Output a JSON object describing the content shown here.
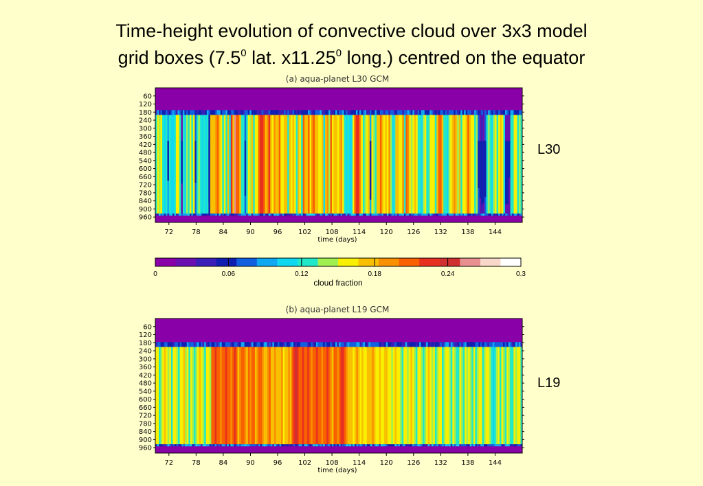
{
  "title": {
    "line1": "Time-height evolution of convective cloud over 3x3 model",
    "line2_a": "grid boxes (7.5",
    "line2_sup1": "0",
    "line2_b": " lat. x11.25",
    "line2_sup2": "0",
    "line2_c": " long.) centred on the equator"
  },
  "chart_data": [
    {
      "type": "heatmap",
      "title": "(a) aqua-planet L30 GCM",
      "side_label": "L30",
      "xlabel": "time (days)",
      "ylabel": "",
      "xlim": [
        69,
        150
      ],
      "ylim": [
        1000,
        0
      ],
      "xticks": [
        72,
        78,
        84,
        90,
        96,
        102,
        108,
        114,
        120,
        126,
        132,
        138,
        144
      ],
      "yticks": [
        60,
        120,
        180,
        240,
        300,
        360,
        420,
        480,
        540,
        600,
        660,
        720,
        780,
        840,
        900,
        960
      ],
      "cloud_layer_hPa": [
        165,
        935
      ],
      "columns": [
        0.13,
        0.15,
        0.14,
        0.16,
        0.13,
        0.11,
        0.12,
        0.09,
        0.12,
        0.11,
        0.1,
        0.13,
        0.16,
        0.15,
        0.13,
        0.03,
        0.13,
        0.11,
        0.14,
        0.12,
        0.16,
        0.12,
        0.15,
        0.07,
        0.13,
        0.14,
        0.12,
        0.1,
        0.13,
        0.11,
        0.13,
        0.05,
        0.17,
        0.18,
        0.17,
        0.19,
        0.2,
        0.18,
        0.15,
        0.12,
        0.16,
        0.13,
        0.18,
        0.11,
        0.22,
        0.18,
        0.26,
        0.2,
        0.21,
        0.17,
        0.13,
        0.12,
        0.08,
        0.12,
        0.16,
        0.14,
        0.17,
        0.12,
        0.16,
        0.15,
        0.2,
        0.22,
        0.23,
        0.2,
        0.17,
        0.19,
        0.22,
        0.18,
        0.16,
        0.19,
        0.18,
        0.17,
        0.2,
        0.15,
        0.16,
        0.17,
        0.18,
        0.12,
        0.17,
        0.16,
        0.18,
        0.16,
        0.12,
        0.17,
        0.16,
        0.12,
        0.21,
        0.18,
        0.17,
        0.2,
        0.16,
        0.19,
        0.2,
        0.17,
        0.18,
        0.16,
        0.15,
        0.17,
        0.11,
        0.17,
        0.19,
        0.14,
        0.2,
        0.15,
        0.18,
        0.18,
        0.16,
        0.17,
        0.19,
        0.16,
        0.13,
        0.1,
        0.12,
        0.1,
        0.1,
        0.15,
        0.21,
        0.23,
        0.22,
        0.19,
        0.16,
        0.13,
        0.14,
        0.16,
        0.17,
        0.09,
        0.15,
        0.14,
        0.13,
        0.17,
        0.18,
        0.2,
        0.17,
        0.15,
        0.17,
        0.16,
        0.19,
        0.14,
        0.1,
        0.12,
        0.18,
        0.17,
        0.16,
        0.16,
        0.19,
        0.13,
        0.2,
        0.19,
        0.15,
        0.14,
        0.15,
        0.17,
        0.15,
        0.13,
        0.13,
        0.11,
        0.14,
        0.16,
        0.12,
        0.13,
        0.15,
        0.16,
        0.15,
        0.12,
        0.18,
        0.2,
        0.21,
        0.18,
        0.13,
        0.12,
        0.1,
        0.14,
        0.16,
        0.18,
        0.19,
        0.17,
        0.14,
        0.18,
        0.13,
        0.16,
        0.15,
        0.18,
        0.2,
        0.17,
        0.15,
        0.16,
        0.13,
        0.14,
        0.08,
        0.03,
        0.04,
        0.02,
        0.08,
        0.12,
        0.14,
        0.13,
        0.1,
        0.14,
        0.16,
        0.13,
        0.15,
        0.17,
        0.15,
        0.1,
        0.02,
        0.03,
        0.03,
        0.12,
        0.13,
        0.15,
        0.16,
        0.13,
        0.14,
        0.12
      ]
    },
    {
      "type": "heatmap",
      "title": "(b) aqua-planet L19 GCM",
      "side_label": "L19",
      "xlabel": "time (days)",
      "ylabel": "",
      "xlim": [
        69,
        150
      ],
      "ylim": [
        1000,
        0
      ],
      "xticks": [
        72,
        78,
        84,
        90,
        96,
        102,
        108,
        114,
        120,
        126,
        132,
        138,
        144
      ],
      "yticks": [
        60,
        120,
        180,
        240,
        300,
        360,
        420,
        480,
        540,
        600,
        660,
        720,
        780,
        840,
        900,
        960
      ],
      "cloud_layer_hPa": [
        175,
        935
      ],
      "columns": [
        0.15,
        0.16,
        0.13,
        0.14,
        0.15,
        0.17,
        0.16,
        0.14,
        0.15,
        0.13,
        0.15,
        0.16,
        0.14,
        0.12,
        0.15,
        0.16,
        0.17,
        0.14,
        0.15,
        0.13,
        0.15,
        0.14,
        0.12,
        0.14,
        0.16,
        0.17,
        0.15,
        0.14,
        0.13,
        0.16,
        0.15,
        0.14,
        0.2,
        0.21,
        0.22,
        0.2,
        0.21,
        0.19,
        0.2,
        0.21,
        0.22,
        0.21,
        0.2,
        0.19,
        0.21,
        0.22,
        0.2,
        0.18,
        0.19,
        0.2,
        0.21,
        0.19,
        0.18,
        0.2,
        0.19,
        0.21,
        0.2,
        0.18,
        0.19,
        0.2,
        0.21,
        0.19,
        0.18,
        0.17,
        0.19,
        0.2,
        0.18,
        0.17,
        0.19,
        0.18,
        0.17,
        0.18,
        0.19,
        0.16,
        0.18,
        0.17,
        0.19,
        0.18,
        0.2,
        0.22,
        0.24,
        0.23,
        0.21,
        0.2,
        0.22,
        0.21,
        0.2,
        0.22,
        0.21,
        0.19,
        0.2,
        0.21,
        0.22,
        0.2,
        0.21,
        0.19,
        0.2,
        0.21,
        0.22,
        0.2,
        0.19,
        0.18,
        0.2,
        0.21,
        0.19,
        0.2,
        0.22,
        0.23,
        0.21,
        0.19,
        0.18,
        0.17,
        0.18,
        0.16,
        0.17,
        0.19,
        0.18,
        0.16,
        0.17,
        0.15,
        0.16,
        0.18,
        0.17,
        0.18,
        0.19,
        0.17,
        0.16,
        0.15,
        0.17,
        0.16,
        0.15,
        0.17,
        0.18,
        0.16,
        0.15,
        0.14,
        0.16,
        0.17,
        0.15,
        0.16,
        0.14,
        0.13,
        0.15,
        0.16,
        0.14,
        0.15,
        0.17,
        0.16,
        0.14,
        0.13,
        0.15,
        0.16,
        0.14,
        0.13,
        0.14,
        0.15,
        0.17,
        0.16,
        0.14,
        0.15,
        0.13,
        0.14,
        0.16,
        0.15,
        0.13,
        0.14,
        0.16,
        0.15,
        0.14,
        0.13,
        0.15,
        0.14,
        0.12,
        0.13,
        0.15,
        0.14,
        0.13,
        0.15,
        0.14,
        0.16,
        0.14,
        0.13,
        0.15,
        0.12,
        0.14,
        0.16,
        0.15,
        0.13,
        0.14,
        0.15,
        0.16,
        0.14,
        0.13,
        0.1,
        0.12,
        0.14,
        0.15,
        0.13,
        0.16,
        0.14,
        0.13,
        0.15,
        0.14,
        0.12,
        0.13,
        0.15,
        0.14,
        0.16,
        0.15,
        0.13
      ]
    }
  ],
  "colorbar": {
    "label": "cloud fraction",
    "min": 0,
    "max": 0.3,
    "ticks": [
      0,
      0.06,
      0.12,
      0.18,
      0.24,
      0.3
    ],
    "tick_labels": [
      "0",
      "0.06",
      "0.12",
      "0.18",
      "0.24",
      "0.3"
    ],
    "colors": [
      "#8a00a8",
      "#6a10b0",
      "#3a20b8",
      "#1020b0",
      "#1060e0",
      "#10a8f0",
      "#10d8f0",
      "#20e8c8",
      "#a0f050",
      "#f8f000",
      "#f8c000",
      "#f89000",
      "#f86000",
      "#e83020",
      "#d03030",
      "#e89090",
      "#f8d8c8",
      "#ffffff"
    ]
  }
}
